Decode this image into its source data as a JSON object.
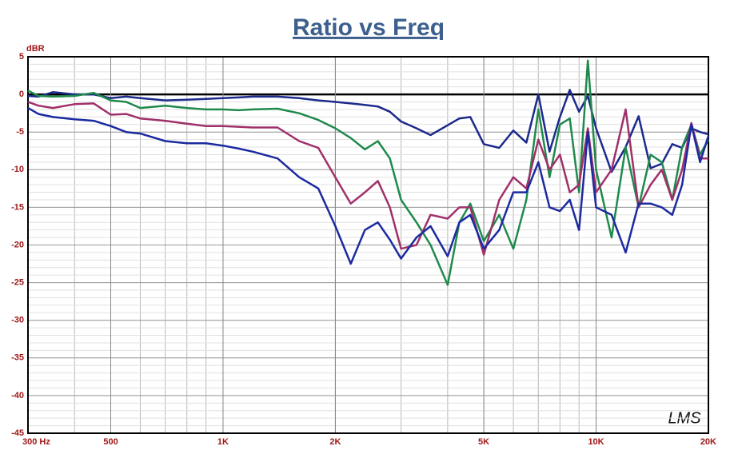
{
  "chart_data": {
    "type": "line",
    "title": "Ratio vs Freq",
    "y_label": "dBR",
    "annotation": "LMS",
    "x": [
      300,
      320,
      350,
      400,
      450,
      500,
      550,
      600,
      700,
      800,
      900,
      1000,
      1100,
      1200,
      1400,
      1600,
      1800,
      2000,
      2200,
      2400,
      2600,
      2800,
      3000,
      3300,
      3600,
      4000,
      4300,
      4600,
      5000,
      5500,
      6000,
      6500,
      7000,
      7500,
      8000,
      8500,
      9000,
      9500,
      10000,
      11000,
      12000,
      13000,
      14000,
      15000,
      16000,
      17000,
      18000,
      19000,
      20000
    ],
    "series": [
      {
        "color": "#1c2a8c",
        "values": [
          -0.2,
          -0.3,
          0.3,
          0,
          0,
          -0.5,
          -0.3,
          -0.5,
          -0.8,
          -0.7,
          -0.6,
          -0.5,
          -0.4,
          -0.3,
          -0.3,
          -0.5,
          -0.8,
          -1,
          -1.2,
          -1.4,
          -1.6,
          -2.3,
          -3.6,
          -4.5,
          -5.4,
          -4.1,
          -3.2,
          -3,
          -6.6,
          -7.1,
          -4.8,
          -6.4,
          0,
          -7.6,
          -3,
          0.6,
          -2.3,
          -0.2,
          -4.5,
          -10.3,
          -7,
          -2.9,
          -9.8,
          -9.2,
          -6.6,
          -7.1,
          -4.5,
          -5,
          -5.3
        ]
      },
      {
        "color": "#1f8a4c",
        "values": [
          0.5,
          -0.2,
          -0.3,
          -0.2,
          0.2,
          -0.8,
          -1,
          -1.8,
          -1.5,
          -1.8,
          -2,
          -2,
          -2.1,
          -2,
          -1.9,
          -2.5,
          -3.4,
          -4.5,
          -5.8,
          -7.3,
          -6.2,
          -8.5,
          -14,
          -17,
          -20,
          -25.3,
          -17,
          -14.5,
          -19.5,
          -16,
          -20.5,
          -14,
          -2,
          -11,
          -4,
          -3.2,
          -13,
          4.5,
          -10,
          -19,
          -7,
          -15,
          -8,
          -9,
          -14,
          -7,
          -4,
          -8,
          -6
        ]
      },
      {
        "color": "#a0306a",
        "values": [
          -1,
          -1.5,
          -1.8,
          -1.3,
          -1.2,
          -2.7,
          -2.6,
          -3.2,
          -3.5,
          -3.9,
          -4.2,
          -4.2,
          -4.3,
          -4.4,
          -4.4,
          -6.2,
          -7.1,
          -11,
          -14.5,
          -13,
          -11.5,
          -15,
          -20.5,
          -20,
          -16,
          -16.5,
          -15,
          -15,
          -21.3,
          -14,
          -11,
          -12.5,
          -6,
          -10,
          -8,
          -13,
          -12,
          -4.5,
          -13,
          -10,
          -2,
          -15,
          -12,
          -10,
          -14,
          -10,
          -3.8,
          -8.5,
          -8.5
        ]
      },
      {
        "color": "#1c2aa0",
        "values": [
          -1.8,
          -2.6,
          -3,
          -3.3,
          -3.5,
          -4.2,
          -5,
          -5.2,
          -6.2,
          -6.5,
          -6.5,
          -6.8,
          -7.2,
          -7.6,
          -8.5,
          -11,
          -12.5,
          -17.5,
          -22.5,
          -18,
          -17,
          -19.3,
          -21.8,
          -19,
          -17.5,
          -21.5,
          -17,
          -16,
          -20.5,
          -18,
          -13,
          -13,
          -9,
          -15,
          -15.5,
          -14,
          -18,
          -5,
          -15,
          -16,
          -21,
          -14.5,
          -14.5,
          -15,
          -16,
          -12,
          -4,
          -9,
          -5.5
        ]
      }
    ],
    "xscale": "log",
    "xlim": [
      300,
      20000
    ],
    "xticks": [
      {
        "value": 300,
        "label": "300 Hz"
      },
      500,
      {
        "value": 1000,
        "label": "1K"
      },
      {
        "value": 2000,
        "label": "2K"
      },
      {
        "value": 5000,
        "label": "5K"
      },
      {
        "value": 10000,
        "label": "10K"
      },
      {
        "value": 20000,
        "label": "20K"
      }
    ],
    "ylim": [
      -45,
      5
    ],
    "yticks": [
      5,
      0,
      -5,
      -10,
      -15,
      -20,
      -25,
      -30,
      -35,
      -40,
      -45
    ],
    "grid": true
  }
}
